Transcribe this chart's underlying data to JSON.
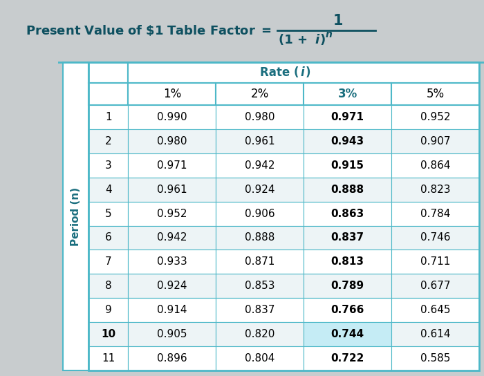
{
  "col_headers": [
    "",
    "1%",
    "2%",
    "3%",
    "5%"
  ],
  "data": [
    [
      1,
      0.99,
      0.98,
      0.971,
      0.952
    ],
    [
      2,
      0.98,
      0.961,
      0.943,
      0.907
    ],
    [
      3,
      0.971,
      0.942,
      0.915,
      0.864
    ],
    [
      4,
      0.961,
      0.924,
      0.888,
      0.823
    ],
    [
      5,
      0.952,
      0.906,
      0.863,
      0.784
    ],
    [
      6,
      0.942,
      0.888,
      0.837,
      0.746
    ],
    [
      7,
      0.933,
      0.871,
      0.813,
      0.711
    ],
    [
      8,
      0.924,
      0.853,
      0.789,
      0.677
    ],
    [
      9,
      0.914,
      0.837,
      0.766,
      0.645
    ],
    [
      10,
      0.905,
      0.82,
      0.744,
      0.614
    ],
    [
      11,
      0.896,
      0.804,
      0.722,
      0.585
    ]
  ],
  "bold_col_idx": 3,
  "bold_row_idx": 9,
  "highlight_cell": [
    9,
    3
  ],
  "teal": "#1a6e7e",
  "teal_dark": "#0e5060",
  "highlight_color": "#c5ecf5",
  "row_bg_white": "#ffffff",
  "row_bg_light": "#edf4f6",
  "border_color": "#4db8c8",
  "title_bg": "#c8ccce",
  "cell_text_color": "#000000",
  "period_strip_color": "#dde6e8"
}
